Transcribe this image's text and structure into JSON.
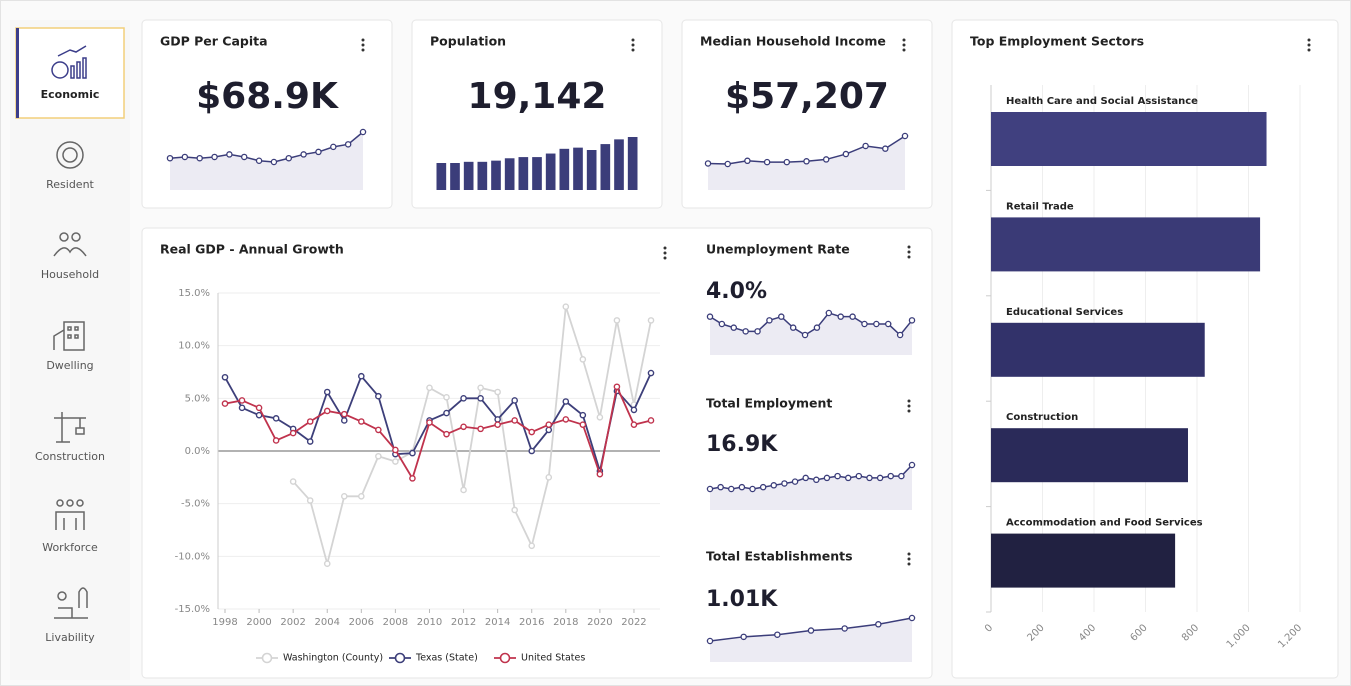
{
  "sidebar": {
    "items": [
      "Economic",
      "Resident",
      "Household",
      "Dwelling",
      "Construction",
      "Workforce",
      "Livability"
    ]
  },
  "kpis": [
    {
      "title": "GDP Per Capita",
      "value": "$68.9K",
      "type": "line",
      "values": [
        58.5,
        59,
        58.5,
        59,
        60,
        59,
        57.5,
        57,
        58.5,
        60,
        61,
        63,
        64,
        68.9
      ]
    },
    {
      "title": "Population",
      "value": "19,142",
      "type": "bar",
      "values": [
        16.9,
        16.9,
        17.0,
        17.0,
        17.1,
        17.3,
        17.4,
        17.4,
        17.7,
        18.1,
        18.2,
        18.0,
        18.5,
        18.9,
        19.1
      ]
    },
    {
      "title": "Median Household Income",
      "value": "$57,207",
      "type": "line",
      "values": [
        47.0,
        46.8,
        48.0,
        47.5,
        47.5,
        47.8,
        48.5,
        50.5,
        53.5,
        52.5,
        57.2
      ]
    },
    {
      "title": "Unemployment Rate",
      "value": "4.0%",
      "type": "line",
      "values": [
        4.3,
        4.1,
        4.0,
        3.9,
        3.9,
        4.2,
        4.3,
        4.0,
        3.8,
        4.0,
        4.4,
        4.3,
        4.3,
        4.1,
        4.1,
        4.1,
        3.8,
        4.2
      ]
    },
    {
      "title": "Total Employment",
      "value": "16.9K",
      "type": "line",
      "values": [
        15.6,
        15.7,
        15.6,
        15.7,
        15.6,
        15.7,
        15.8,
        15.9,
        16.0,
        16.2,
        16.1,
        16.2,
        16.3,
        16.2,
        16.3,
        16.2,
        16.2,
        16.3,
        16.3,
        16.9
      ]
    },
    {
      "title": "Total Establishments",
      "value": "1.01K",
      "type": "line",
      "values": [
        0.9,
        0.92,
        0.93,
        0.95,
        0.96,
        0.98,
        1.01
      ]
    }
  ],
  "chart_data": [
    {
      "type": "line",
      "title": "Real GDP - Annual Growth",
      "x": [
        1998,
        1999,
        2000,
        2001,
        2002,
        2003,
        2004,
        2005,
        2006,
        2007,
        2008,
        2009,
        2010,
        2011,
        2012,
        2013,
        2014,
        2015,
        2016,
        2017,
        2018,
        2019,
        2020,
        2021,
        2022,
        2023
      ],
      "xlim": [
        1998,
        2023
      ],
      "xticks": [
        1998,
        2000,
        2002,
        2004,
        2006,
        2008,
        2010,
        2012,
        2014,
        2016,
        2018,
        2020,
        2022
      ],
      "ylim": [
        -15,
        15
      ],
      "yticks": [
        {
          "value": -15,
          "label": "-15.0%"
        },
        {
          "value": -10,
          "label": "-10.0%"
        },
        {
          "value": -5,
          "label": "-5.0%"
        },
        {
          "value": 0,
          "label": "0.0%"
        },
        {
          "value": 5,
          "label": "5.0%"
        },
        {
          "value": 10,
          "label": "10.0%"
        },
        {
          "value": 15,
          "label": "15.0%"
        }
      ],
      "grid": true,
      "series": [
        {
          "name": "Washington (County)",
          "color": "#d4d4d4",
          "values": [
            null,
            null,
            null,
            null,
            -2.9,
            -4.7,
            -10.7,
            -4.3,
            -4.3,
            -0.5,
            -1.0,
            -0.1,
            6.0,
            5.1,
            -3.7,
            6.0,
            5.6,
            -5.6,
            -9.0,
            -2.5,
            13.7,
            8.7,
            3.2,
            12.4,
            4.4,
            12.4
          ]
        },
        {
          "name": "Texas (State)",
          "color": "#3d3f7a",
          "values": [
            7.0,
            4.1,
            3.4,
            3.1,
            2.1,
            0.9,
            5.6,
            2.9,
            7.1,
            5.2,
            -0.3,
            -0.2,
            2.9,
            3.6,
            5.0,
            5.0,
            3.0,
            4.8,
            0.0,
            2.0,
            4.7,
            3.4,
            -1.9,
            5.7,
            3.9,
            7.4
          ]
        },
        {
          "name": "United States",
          "color": "#c0334d",
          "values": [
            4.5,
            4.8,
            4.1,
            1.0,
            1.7,
            2.8,
            3.8,
            3.5,
            2.8,
            2.0,
            0.1,
            -2.6,
            2.7,
            1.6,
            2.3,
            2.1,
            2.5,
            2.9,
            1.8,
            2.5,
            3.0,
            2.5,
            -2.2,
            6.1,
            2.5,
            2.9
          ]
        }
      ]
    },
    {
      "type": "hbar",
      "title": "Top Employment Sectors",
      "categories": [
        "Health Care and Social Assistance",
        "Retail Trade",
        "Educational Services",
        "Construction",
        "Accommodation and Food Services"
      ],
      "values": [
        1070,
        1045,
        830,
        765,
        715
      ],
      "colors": [
        "#40407f",
        "#3a3a76",
        "#32326a",
        "#2a2a59",
        "#212141"
      ],
      "xlim": [
        0,
        1200
      ],
      "xticks": [
        0,
        200,
        400,
        600,
        800,
        {
          "value": 1000,
          "label": "1,000"
        },
        {
          "value": 1200,
          "label": "1,200"
        }
      ],
      "grid": true
    }
  ]
}
